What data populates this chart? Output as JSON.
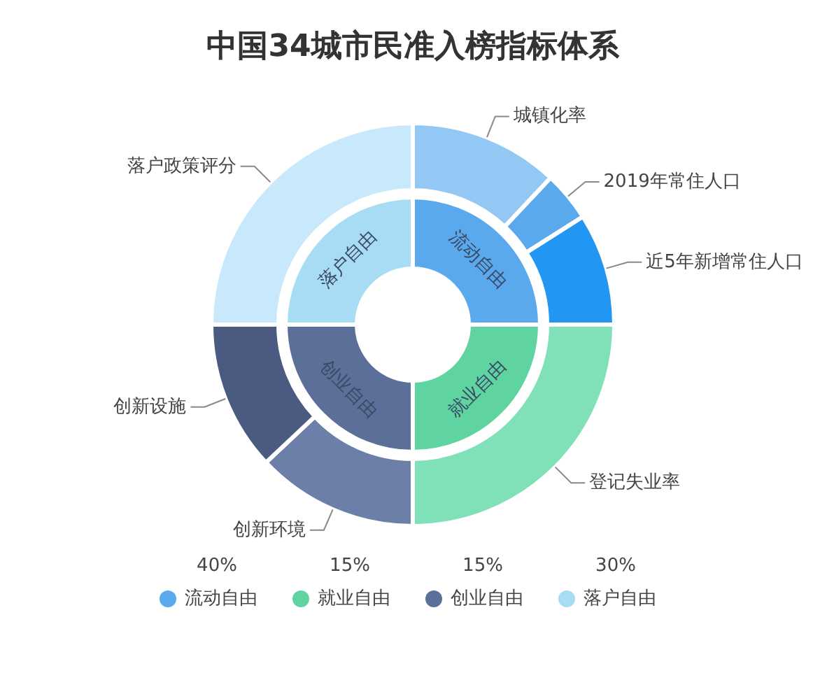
{
  "chart_data": [
    {
      "type": "donut",
      "title": "中国34城市民准入榜指标体系",
      "categories": [
        "流动自由",
        "就业自由",
        "创业自由",
        "落户自由"
      ],
      "values": [
        25,
        25,
        25,
        25
      ],
      "colors": [
        "#5aa9ec",
        "#5fd4a0",
        "#5c6f99",
        "#a8dcf5"
      ],
      "legend": "bottom",
      "annotations": [
        "40%",
        "15%",
        "15%",
        "30%"
      ]
    },
    {
      "type": "donut",
      "categories": [
        "城镇化率",
        "2019年常住人口",
        "近5年新增常住人口",
        "登记失业率",
        "创新环境",
        "创新设施",
        "落户政策评分"
      ],
      "values": [
        12,
        4,
        9,
        25,
        13,
        12,
        25
      ],
      "colors": [
        "#93c8f4",
        "#5aa9ec",
        "#2196f3",
        "#80e0b8",
        "#6b7fa8",
        "#4a5a80",
        "#c8e9fb"
      ]
    }
  ]
}
